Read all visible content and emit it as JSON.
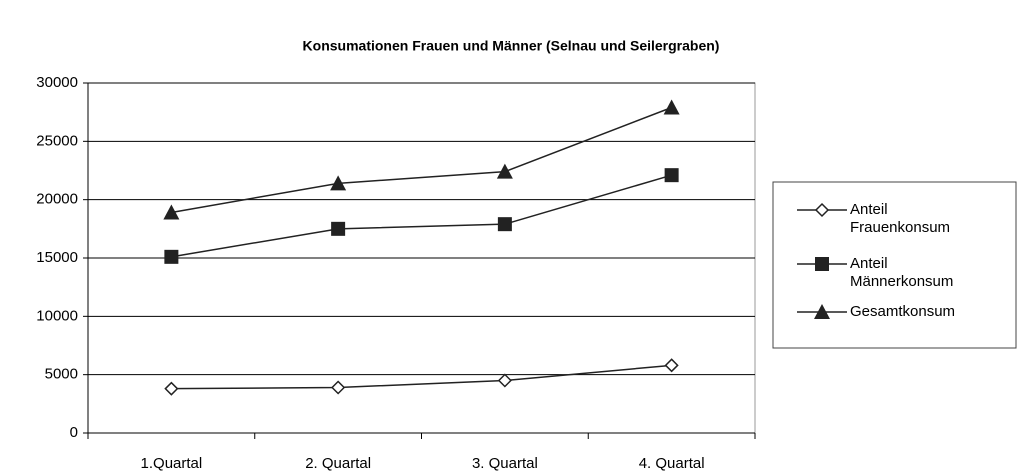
{
  "chart_data": {
    "type": "line",
    "title": "Konsumationen Frauen und Männer (Selnau und Seilergraben)",
    "categories": [
      "1.Quartal",
      "2. Quartal",
      "3. Quartal",
      "4. Quartal"
    ],
    "series": [
      {
        "name": "Anteil Frauenkonsum",
        "color": "#222222",
        "marker": "diamond",
        "values": [
          3800,
          3900,
          4500,
          5800
        ]
      },
      {
        "name": "Anteil Männerkonsum",
        "color": "#222222",
        "marker": "square",
        "values": [
          15100,
          17500,
          17900,
          22100
        ]
      },
      {
        "name": "Gesamtkonsum",
        "color": "#222222",
        "marker": "triangle",
        "values": [
          18900,
          21400,
          22400,
          27900
        ]
      }
    ],
    "ylim": [
      0,
      30000
    ],
    "yticks": [
      0,
      5000,
      10000,
      15000,
      20000,
      25000,
      30000
    ],
    "grid": true,
    "legend": "right"
  }
}
